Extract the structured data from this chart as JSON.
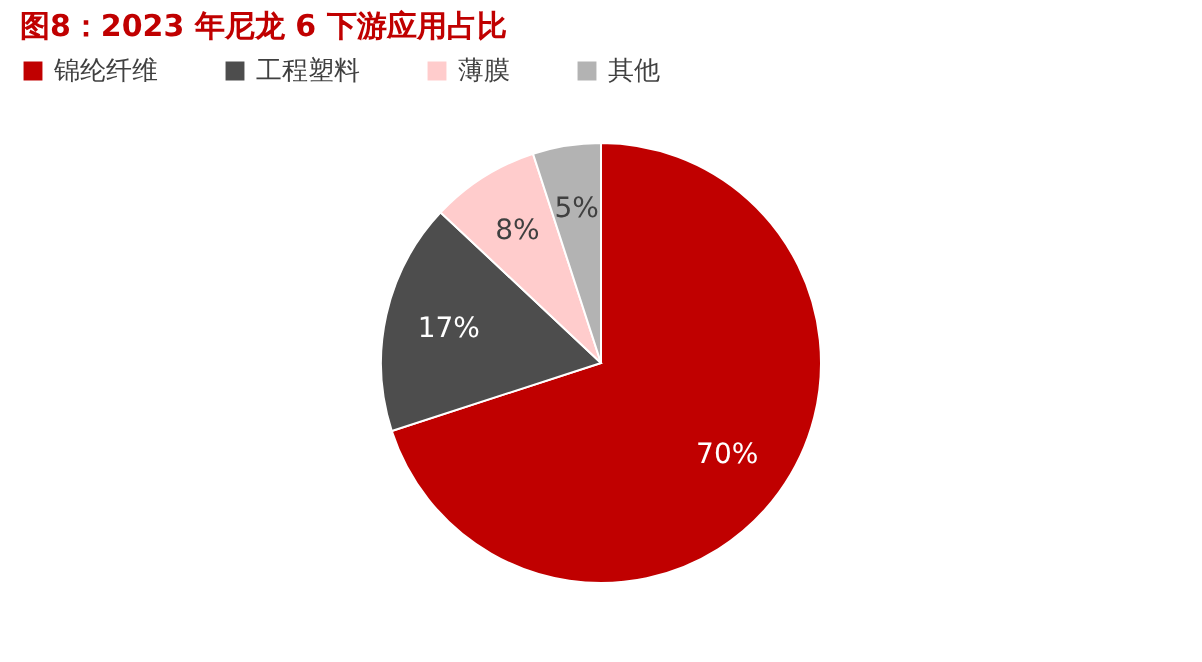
{
  "chart_data": {
    "type": "pie",
    "title": "图8：2023 年尼龙 6 下游应用占比",
    "categories": [
      "锦纶纤维",
      "工程塑料",
      "薄膜",
      "其他"
    ],
    "values": [
      70,
      17,
      8,
      5
    ],
    "colors": [
      "#c00000",
      "#4d4d4d",
      "#ffcccc",
      "#b3b3b3"
    ],
    "value_labels": [
      "70%",
      "17%",
      "8%",
      "5%"
    ],
    "legend": "top"
  }
}
